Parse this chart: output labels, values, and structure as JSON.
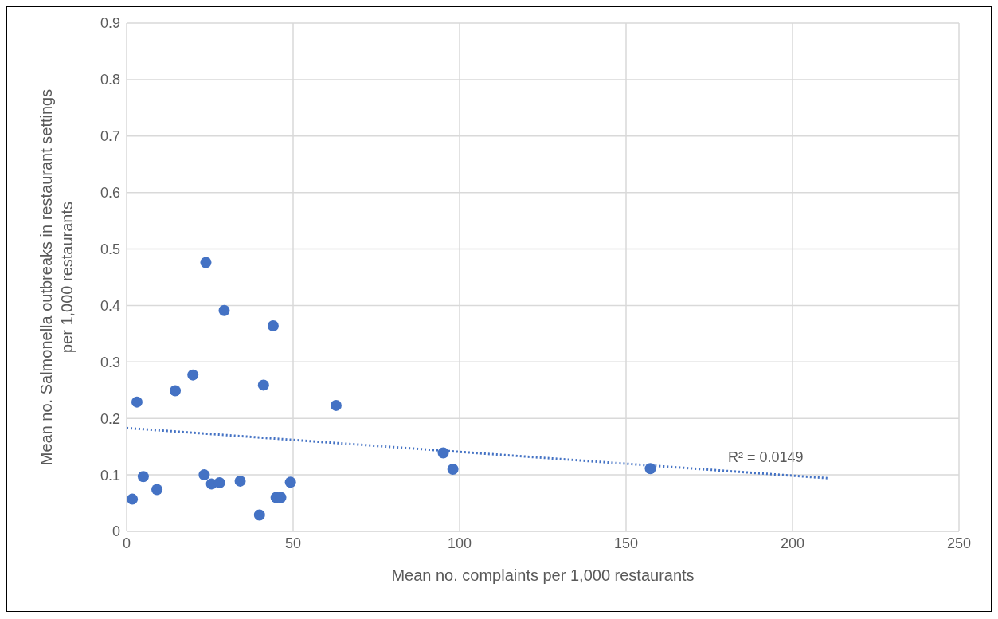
{
  "chart_data": {
    "type": "scatter",
    "xlabel": "Mean no.  complaints per 1,000 restaurants",
    "ylabel": "Mean no. Salmonella outbreaks in restaurant settings per 1,000 restaurants",
    "xlim": [
      0,
      250
    ],
    "xticks": [
      0,
      50,
      100,
      150,
      200,
      250
    ],
    "ylim": [
      0,
      0.9
    ],
    "yticks": [
      0,
      0.1,
      0.2,
      0.3,
      0.4,
      0.5,
      0.6,
      0.7,
      0.8,
      0.9
    ],
    "grid": true,
    "series": [
      {
        "marker": "circle",
        "color": "#4472c4",
        "x": [
          1.7,
          3.1,
          5.0,
          9.1,
          14.6,
          19.9,
          23.3,
          23.8,
          25.5,
          27.9,
          29.3,
          34.1,
          39.9,
          41.1,
          44.0,
          44.9,
          46.3,
          49.2,
          62.9,
          95.1,
          98.0,
          157.3
        ],
        "values": [
          0.057,
          0.229,
          0.097,
          0.074,
          0.249,
          0.277,
          0.1,
          0.476,
          0.084,
          0.086,
          0.391,
          0.089,
          0.029,
          0.259,
          0.364,
          0.06,
          0.06,
          0.087,
          0.223,
          0.139,
          0.11,
          0.111
        ]
      },
      {
        "type": "line",
        "color": "#4472c4",
        "line_style": "dotted",
        "x": [
          0,
          211
        ],
        "values": [
          0.183,
          0.094
        ]
      }
    ],
    "annotations": [
      "R² = 0.0149"
    ]
  }
}
